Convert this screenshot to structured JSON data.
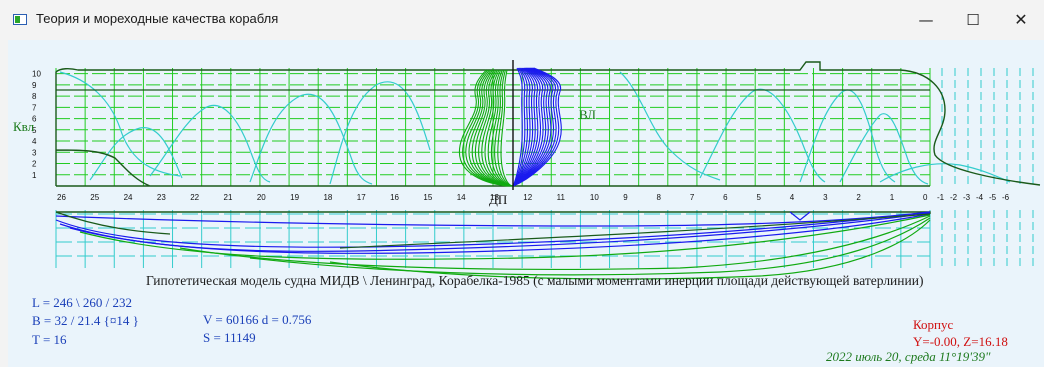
{
  "window": {
    "title": "Теория и мореходные качества корабля",
    "controls": {
      "minimize": "—",
      "maximize": "☐",
      "close": "✕"
    }
  },
  "drawing": {
    "left_axis_label": "Квл",
    "waterline_label": "ВЛ",
    "centerline_label": "ДП",
    "z_ticks": [
      "1",
      "2",
      "3",
      "4",
      "5",
      "6",
      "7",
      "8",
      "9",
      "10"
    ],
    "station_labels": [
      "26",
      "25",
      "24",
      "23",
      "22",
      "21",
      "20",
      "19",
      "18",
      "17",
      "16",
      "15",
      "14",
      "13",
      "12",
      "11",
      "10",
      "9",
      "8",
      "7",
      "6",
      "5",
      "4",
      "3",
      "2",
      "1",
      "0",
      "-1",
      "-2",
      "-3",
      "-4",
      "-5",
      "-6"
    ],
    "colors": {
      "profile": "#1a5a1a",
      "grid": "#22cc22",
      "waterlines": "#33cccc",
      "body_bow": "#1a1aee",
      "body_stern": "#11aa11"
    }
  },
  "caption": "Гипотетическая модель судна МИДВ \\ Ленинград, Корабелка-1985 (с малыми моментами инерции площади действующей ватерлинии)",
  "dimensions": {
    "L": "L = 246 \\ 260 / 232",
    "B": "B = 32 / 21.4 {¤14 }",
    "T": "T = 16",
    "V": "V = 60166  d = 0.756",
    "S": "S = 11149"
  },
  "status": {
    "mode": "Корпус",
    "coords": "Y=-0.00, Z=16.18",
    "datetime": "2022 июль 20, среда 11°19'39\""
  }
}
